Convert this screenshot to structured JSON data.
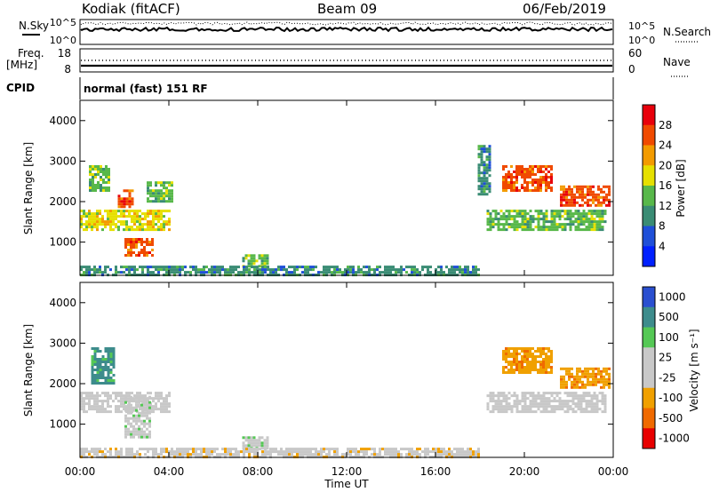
{
  "header": {
    "station": "Kodiak (fitACF)",
    "beam": "Beam 09",
    "date": "06/Feb/2019"
  },
  "aux_panels": {
    "nsky_label": "N.Sky",
    "nsearch_label": "N.Search",
    "noise_ticks_left": [
      "10^5",
      "10^0"
    ],
    "noise_ticks_right": [
      "10^5",
      "10^0"
    ],
    "freq_label_line1": "Freq.",
    "freq_label_line2": "[MHz]",
    "freq_ticks": [
      "18",
      "8"
    ],
    "nave_label": "Nave",
    "nave_ticks": [
      "60",
      "0"
    ],
    "cpid_label": "CPID",
    "cpid_value": "normal (fast) 151 RF"
  },
  "x_axis": {
    "label": "Time UT",
    "ticks": [
      "00:00",
      "04:00",
      "08:00",
      "12:00",
      "16:00",
      "20:00",
      "00:00"
    ]
  },
  "power_panel": {
    "ylabel": "Slant Range [km]",
    "yticks": [
      "4000",
      "3000",
      "2000",
      "1000"
    ],
    "colorbar_label": "Power [dB]",
    "colorbar_ticks": [
      "28",
      "24",
      "20",
      "16",
      "12",
      "8",
      "4"
    ],
    "colorbar_colors": [
      "#e8000b",
      "#f04a00",
      "#f39b00",
      "#e6e000",
      "#58b84a",
      "#3a8c74",
      "#1f4fd8",
      "#0020ff"
    ]
  },
  "velocity_panel": {
    "ylabel": "Slant Range [km]",
    "yticks": [
      "4000",
      "3000",
      "2000",
      "1000"
    ],
    "colorbar_label": "Velocity [m s⁻¹]",
    "colorbar_ticks": [
      "1000",
      "500",
      "100",
      "25",
      "-25",
      "-100",
      "-500",
      "-1000"
    ],
    "colorbar_colors": [
      "#2a4fd0",
      "#3d8c8c",
      "#55c855",
      "#c8c8c8",
      "#c8c8c8",
      "#f0a000",
      "#f06a00",
      "#e80000"
    ]
  },
  "chart_data": [
    {
      "type": "heatmap",
      "title": "Power",
      "xlabel": "Time UT",
      "ylabel": "Slant Range [km]",
      "xlim": [
        0,
        24
      ],
      "ylim": [
        180,
        4500
      ],
      "clim": [
        0,
        30
      ],
      "patches": [
        {
          "t0": 0.0,
          "t1": 4.0,
          "r0": 1300,
          "r1": 1800,
          "value": 16
        },
        {
          "t0": 2.0,
          "t1": 3.3,
          "r0": 700,
          "r1": 1100,
          "value": 26
        },
        {
          "t0": 1.7,
          "t1": 2.4,
          "r0": 1900,
          "r1": 2300,
          "value": 24
        },
        {
          "t0": 3.0,
          "t1": 4.2,
          "r0": 2000,
          "r1": 2500,
          "value": 12
        },
        {
          "t0": 0.4,
          "t1": 1.3,
          "r0": 2300,
          "r1": 2900,
          "value": 14
        },
        {
          "t0": 7.3,
          "t1": 8.5,
          "r0": 400,
          "r1": 700,
          "value": 12
        },
        {
          "t0": 0.0,
          "t1": 18.0,
          "r0": 200,
          "r1": 420,
          "value": 10
        },
        {
          "t0": 18.3,
          "t1": 23.6,
          "r0": 1300,
          "r1": 1800,
          "value": 14
        },
        {
          "t0": 19.0,
          "t1": 21.2,
          "r0": 2300,
          "r1": 2900,
          "value": 24
        },
        {
          "t0": 21.6,
          "t1": 23.8,
          "r0": 1900,
          "r1": 2400,
          "value": 26
        },
        {
          "t0": 17.9,
          "t1": 18.5,
          "r0": 2200,
          "r1": 3400,
          "value": 10
        }
      ]
    },
    {
      "type": "heatmap",
      "title": "Velocity",
      "xlabel": "Time UT",
      "ylabel": "Slant Range [km]",
      "xlim": [
        0,
        24
      ],
      "ylim": [
        180,
        4500
      ],
      "clim": [
        -1000,
        1000
      ],
      "patches": [
        {
          "t0": 0.0,
          "t1": 4.0,
          "r0": 1300,
          "r1": 1800,
          "value": 0
        },
        {
          "t0": 2.0,
          "t1": 3.2,
          "r0": 700,
          "r1": 1700,
          "value": 100
        },
        {
          "t0": 0.5,
          "t1": 1.5,
          "r0": 2000,
          "r1": 2900,
          "value": 500
        },
        {
          "t0": 7.3,
          "t1": 8.5,
          "r0": 400,
          "r1": 700,
          "value": 100
        },
        {
          "t0": 0.0,
          "t1": 18.0,
          "r0": 200,
          "r1": 420,
          "value": -100
        },
        {
          "t0": 18.3,
          "t1": 23.6,
          "r0": 1300,
          "r1": 1800,
          "value": 0
        },
        {
          "t0": 19.0,
          "t1": 21.2,
          "r0": 2300,
          "r1": 2900,
          "value": -500
        },
        {
          "t0": 21.6,
          "t1": 23.8,
          "r0": 1900,
          "r1": 2400,
          "value": -500
        }
      ]
    }
  ]
}
